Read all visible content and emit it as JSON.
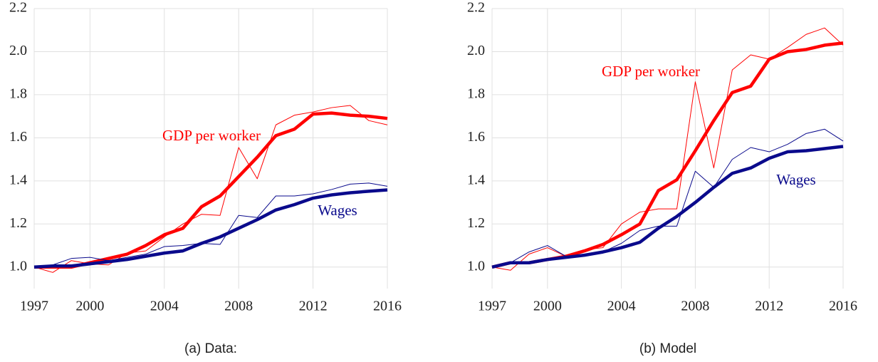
{
  "chart_data": [
    {
      "type": "line",
      "caption": "(a) Data:",
      "x": [
        1997,
        1998,
        1999,
        2000,
        2001,
        2002,
        2003,
        2004,
        2005,
        2006,
        2007,
        2008,
        2009,
        2010,
        2011,
        2012,
        2013,
        2014,
        2015,
        2016
      ],
      "series": [
        {
          "color": "#ff0000",
          "linewidth": 1,
          "values": [
            1.0,
            0.975,
            1.03,
            1.015,
            1.01,
            1.065,
            1.075,
            1.14,
            1.2,
            1.245,
            1.24,
            1.555,
            1.41,
            1.66,
            1.705,
            1.72,
            1.74,
            1.75,
            1.68,
            1.66
          ]
        },
        {
          "name": "GDP per worker",
          "color": "#ff0000",
          "linewidth": 4.5,
          "values": [
            1.0,
            1.0,
            1.0,
            1.02,
            1.04,
            1.06,
            1.1,
            1.15,
            1.18,
            1.28,
            1.33,
            1.42,
            1.51,
            1.61,
            1.64,
            1.71,
            1.715,
            1.705,
            1.7,
            1.69
          ]
        },
        {
          "color": "#0a0a8c",
          "linewidth": 1,
          "values": [
            1.0,
            1.01,
            1.04,
            1.045,
            1.03,
            1.045,
            1.06,
            1.095,
            1.1,
            1.11,
            1.105,
            1.24,
            1.23,
            1.33,
            1.33,
            1.34,
            1.36,
            1.385,
            1.39,
            1.375
          ]
        },
        {
          "name": "Wages",
          "color": "#0a0a8c",
          "linewidth": 4.5,
          "values": [
            1.0,
            1.005,
            1.005,
            1.015,
            1.025,
            1.035,
            1.05,
            1.065,
            1.075,
            1.11,
            1.14,
            1.18,
            1.22,
            1.265,
            1.29,
            1.32,
            1.335,
            1.345,
            1.352,
            1.358
          ]
        }
      ],
      "xlim": [
        1997,
        2016
      ],
      "xticks": [
        1997,
        2000,
        2004,
        2008,
        2012,
        2016
      ],
      "ylim": [
        0.9,
        2.2
      ],
      "yticks": [
        {
          "value": 1,
          "label": "1.0"
        },
        {
          "value": 1.2,
          "label": "1.2"
        },
        {
          "value": 1.4,
          "label": "1.4"
        },
        {
          "value": 1.6,
          "label": "1.6"
        },
        {
          "value": 1.8,
          "label": "1.8"
        },
        {
          "value": 2,
          "label": "2.0"
        },
        {
          "value": 2.2,
          "label": "2.2"
        }
      ],
      "grid": true
    },
    {
      "type": "line",
      "caption": "(b) Model",
      "x": [
        1997,
        1998,
        1999,
        2000,
        2001,
        2002,
        2003,
        2004,
        2005,
        2006,
        2007,
        2008,
        2009,
        2010,
        2011,
        2012,
        2013,
        2014,
        2015,
        2016
      ],
      "series": [
        {
          "color": "#ff0000",
          "linewidth": 1,
          "values": [
            1.0,
            0.985,
            1.06,
            1.09,
            1.05,
            1.08,
            1.09,
            1.2,
            1.255,
            1.27,
            1.27,
            1.86,
            1.46,
            1.915,
            1.985,
            1.965,
            2.02,
            2.08,
            2.11,
            2.03
          ]
        },
        {
          "name": "GDP per worker",
          "color": "#ff0000",
          "linewidth": 4.5,
          "values": [
            1.0,
            1.02,
            1.02,
            1.035,
            1.05,
            1.075,
            1.105,
            1.15,
            1.2,
            1.355,
            1.405,
            1.54,
            1.68,
            1.81,
            1.84,
            1.965,
            2.0,
            2.01,
            2.03,
            2.04
          ]
        },
        {
          "color": "#0a0a8c",
          "linewidth": 1,
          "values": [
            1.0,
            1.02,
            1.07,
            1.1,
            1.05,
            1.06,
            1.07,
            1.11,
            1.17,
            1.19,
            1.19,
            1.445,
            1.37,
            1.5,
            1.555,
            1.535,
            1.57,
            1.62,
            1.64,
            1.585
          ]
        },
        {
          "name": "Wages",
          "color": "#0a0a8c",
          "linewidth": 4.5,
          "values": [
            1.0,
            1.02,
            1.02,
            1.035,
            1.045,
            1.055,
            1.07,
            1.09,
            1.115,
            1.18,
            1.235,
            1.3,
            1.37,
            1.435,
            1.46,
            1.505,
            1.535,
            1.54,
            1.55,
            1.56
          ]
        }
      ],
      "xlim": [
        1997,
        2016
      ],
      "xticks": [
        1997,
        2000,
        2004,
        2008,
        2012,
        2016
      ],
      "ylim": [
        0.9,
        2.2
      ],
      "yticks": [
        {
          "value": 1,
          "label": "1.0"
        },
        {
          "value": 1.2,
          "label": "1.2"
        },
        {
          "value": 1.4,
          "label": "1.4"
        },
        {
          "value": 1.6,
          "label": "1.6"
        },
        {
          "value": 1.8,
          "label": "1.8"
        },
        {
          "value": 2,
          "label": "2.0"
        },
        {
          "value": 2.2,
          "label": "2.2"
        }
      ],
      "grid": true
    }
  ]
}
